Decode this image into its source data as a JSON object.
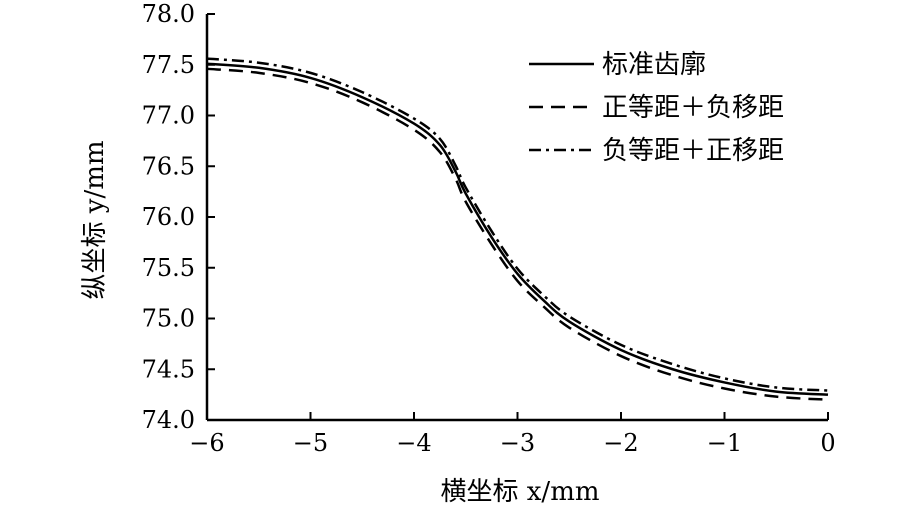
{
  "chart_data": {
    "type": "line",
    "title": "",
    "xlabel": "横坐标 x/mm",
    "ylabel": "纵坐标 y/mm",
    "xlim": [
      -6,
      0
    ],
    "ylim": [
      74.0,
      78.0
    ],
    "x_ticks": [
      -6,
      -5,
      -4,
      -3,
      -2,
      -1,
      0
    ],
    "x_tick_labels": [
      "−6",
      "−5",
      "−4",
      "−3",
      "−2",
      "−1",
      "0"
    ],
    "y_ticks": [
      74.0,
      74.5,
      75.0,
      75.5,
      76.0,
      76.5,
      77.0,
      77.5,
      78.0
    ],
    "y_tick_labels": [
      "74.0",
      "74.5",
      "75.0",
      "75.5",
      "76.0",
      "76.5",
      "77.0",
      "77.5",
      "78.0"
    ],
    "grid": false,
    "legend_position": "top-right",
    "series": [
      {
        "name": "标准齿廓",
        "style": "solid",
        "color": "#000000",
        "x": [
          -6.0,
          -5.5,
          -5.0,
          -4.5,
          -4.0,
          -3.75,
          -3.6,
          -3.5,
          -3.25,
          -3.0,
          -2.75,
          -2.5,
          -2.0,
          -1.5,
          -1.0,
          -0.5,
          0.0
        ],
        "y": [
          77.51,
          77.47,
          77.37,
          77.18,
          76.92,
          76.71,
          76.45,
          76.23,
          75.8,
          75.44,
          75.18,
          74.97,
          74.69,
          74.5,
          74.37,
          74.28,
          74.25
        ]
      },
      {
        "name": "正等距＋负移距",
        "style": "dashed",
        "color": "#000000",
        "x": [
          -6.0,
          -5.5,
          -5.0,
          -4.5,
          -4.0,
          -3.75,
          -3.6,
          -3.5,
          -3.25,
          -3.0,
          -2.75,
          -2.5,
          -2.0,
          -1.5,
          -1.0,
          -0.5,
          0.0
        ],
        "y": [
          77.46,
          77.42,
          77.32,
          77.13,
          76.86,
          76.64,
          76.38,
          76.15,
          75.73,
          75.37,
          75.12,
          74.91,
          74.63,
          74.44,
          74.31,
          74.23,
          74.2
        ]
      },
      {
        "name": "负等距＋正移距",
        "style": "dash-dot",
        "color": "#000000",
        "x": [
          -6.0,
          -5.5,
          -5.0,
          -4.5,
          -4.0,
          -3.75,
          -3.6,
          -3.5,
          -3.25,
          -3.0,
          -2.75,
          -2.5,
          -2.0,
          -1.5,
          -1.0,
          -0.5,
          0.0
        ],
        "y": [
          77.56,
          77.52,
          77.42,
          77.23,
          76.97,
          76.77,
          76.51,
          76.29,
          75.86,
          75.49,
          75.23,
          75.02,
          74.74,
          74.55,
          74.41,
          74.32,
          74.29
        ]
      }
    ]
  }
}
